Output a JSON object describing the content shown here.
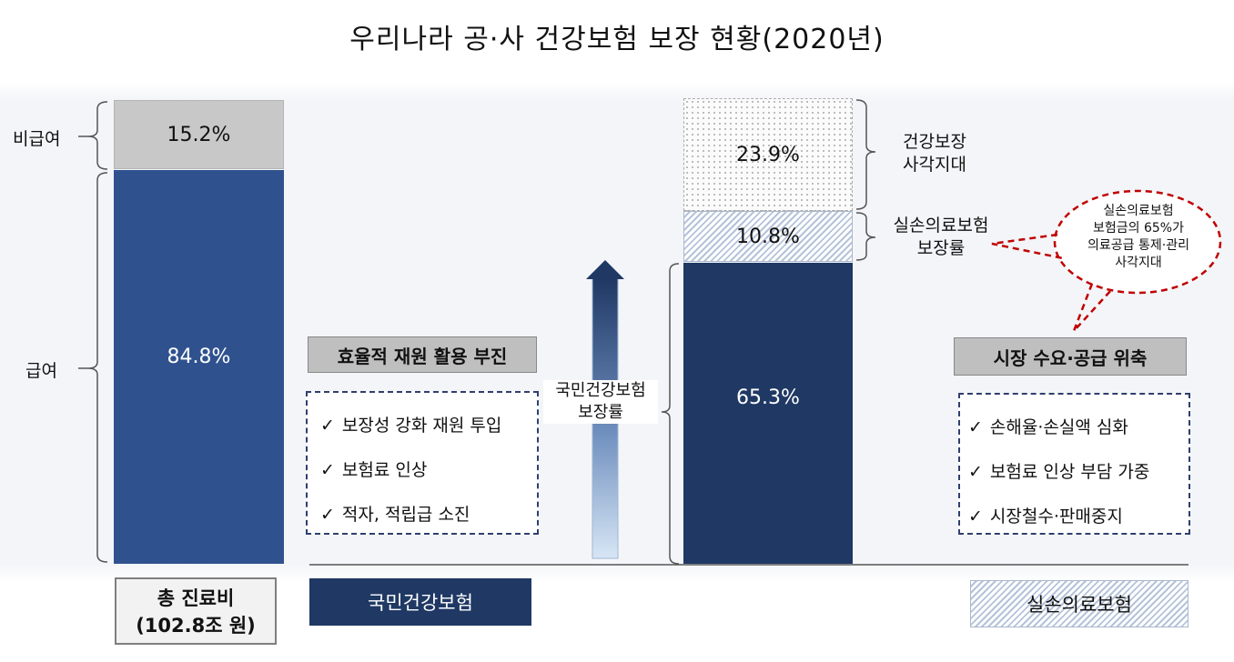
{
  "title": "우리나라 공·사 건강보험 보장 현황(2020년)",
  "left_bar": {
    "non_covered_label": "비급여",
    "non_covered_value": "15.2%",
    "covered_label": "급여",
    "covered_value": "84.8%",
    "footer_line1": "총 진료비",
    "footer_line2": "(102.8조 원)"
  },
  "right_bar": {
    "blind_spot_value": "23.9%",
    "blind_spot_label_line1": "건강보장",
    "blind_spot_label_line2": "사각지대",
    "private_value": "10.8%",
    "private_label_line1": "실손의료보험",
    "private_label_line2": "보장률",
    "nhi_value": "65.3%"
  },
  "arrow_label": {
    "line1": "국민건강보험",
    "line2": "보장률"
  },
  "nhi_panel": {
    "header": "효율적 재원 활용 부진",
    "items": [
      "보장성 강화 재원 투입",
      "보험료 인상",
      "적자, 적립급 소진"
    ]
  },
  "private_panel": {
    "header": "시장 수요·공급 위축",
    "items": [
      "손해율·손실액 심화",
      "보험료 인상 부담 가중",
      "시장철수·판매중지"
    ]
  },
  "bubble": {
    "line1": "실손의료보험",
    "line2": "보험금의 65%가",
    "line3": "의료공급 통제·관리",
    "line4": "사각지대"
  },
  "footer": {
    "nhi": "국민건강보험",
    "private": "실손의료보험"
  },
  "check_mark": "✓",
  "colors": {
    "covered_blue": "#2f528f",
    "nhi_navy": "#1f3864",
    "non_covered_gray": "#c8c8c8",
    "bubble_red": "#c00000"
  }
}
